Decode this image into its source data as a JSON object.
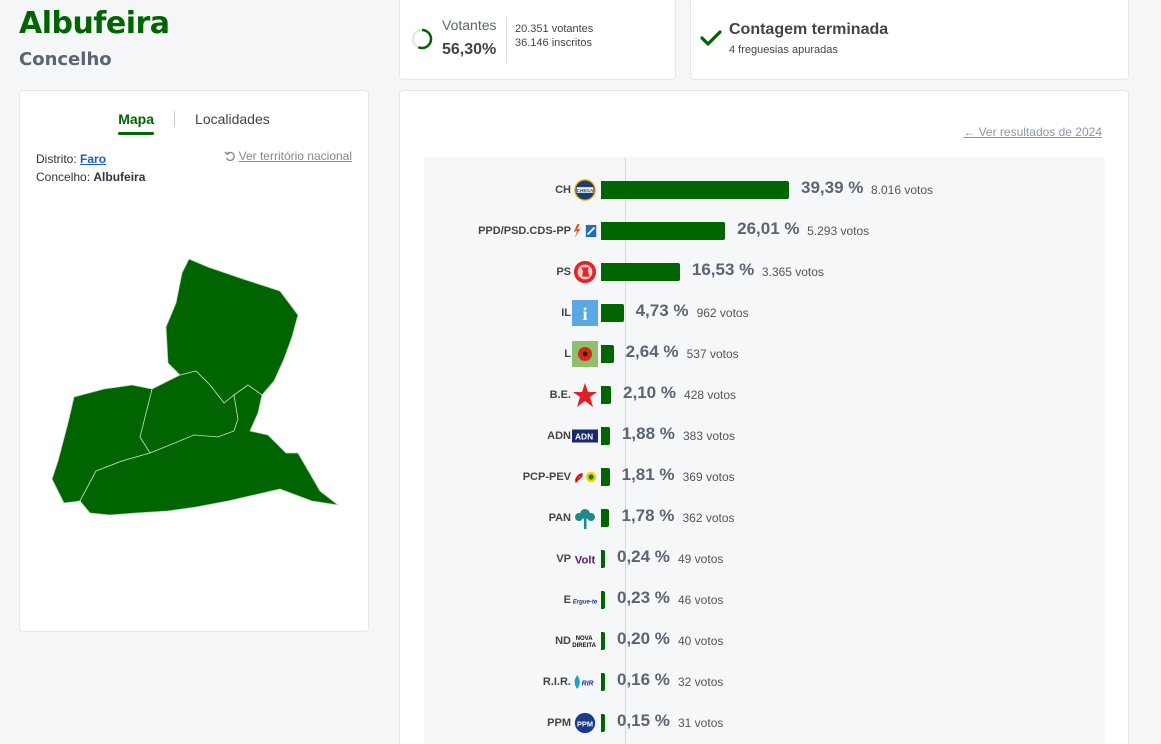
{
  "header": {
    "title": "Albufeira",
    "subtitle": "Concelho"
  },
  "map_panel": {
    "tabs": [
      "Mapa",
      "Localidades"
    ],
    "district_label": "Distrito:",
    "district_value": "Faro",
    "county_label": "Concelho:",
    "county_value": "Albufeira",
    "national_link": "Ver território nacional",
    "map_color": "#006400"
  },
  "votes": {
    "label": "Votantes",
    "percent": "56,30%",
    "percent_value": 56.3,
    "voters": "20.351 votantes",
    "registered": "36.146 inscritos"
  },
  "count": {
    "title": "Contagem terminada",
    "subtitle": "4 freguesias apuradas"
  },
  "results": {
    "prev_link": "Ver resultados de 2024",
    "bar_color": "#006400",
    "rows": [
      {
        "abbr": "CH",
        "pct": "39,39 %",
        "value": 39.39,
        "votes": "8.016 votos",
        "icon": "chega-logo"
      },
      {
        "abbr": "PPD/PSD.CDS-PP",
        "pct": "26,01 %",
        "value": 26.01,
        "votes": "5.293 votos",
        "icon": "ad-logo"
      },
      {
        "abbr": "PS",
        "pct": "16,53 %",
        "value": 16.53,
        "votes": "3.365 votos",
        "icon": "ps-logo"
      },
      {
        "abbr": "IL",
        "pct": "4,73 %",
        "value": 4.73,
        "votes": "962 votos",
        "icon": "il-logo"
      },
      {
        "abbr": "L",
        "pct": "2,64 %",
        "value": 2.64,
        "votes": "537 votos",
        "icon": "livre-logo"
      },
      {
        "abbr": "B.E.",
        "pct": "2,10 %",
        "value": 2.1,
        "votes": "428 votos",
        "icon": "be-logo"
      },
      {
        "abbr": "ADN",
        "pct": "1,88 %",
        "value": 1.88,
        "votes": "383 votos",
        "icon": "adn-logo"
      },
      {
        "abbr": "PCP-PEV",
        "pct": "1,81 %",
        "value": 1.81,
        "votes": "369 votos",
        "icon": "cdu-logo"
      },
      {
        "abbr": "PAN",
        "pct": "1,78 %",
        "value": 1.78,
        "votes": "362 votos",
        "icon": "pan-logo"
      },
      {
        "abbr": "VP",
        "pct": "0,24 %",
        "value": 0.24,
        "votes": "49 votos",
        "icon": "volt-logo"
      },
      {
        "abbr": "E",
        "pct": "0,23 %",
        "value": 0.23,
        "votes": "46 votos",
        "icon": "ergue-te-logo"
      },
      {
        "abbr": "ND",
        "pct": "0,20 %",
        "value": 0.2,
        "votes": "40 votos",
        "icon": "nova-direita-logo"
      },
      {
        "abbr": "R.I.R.",
        "pct": "0,16 %",
        "value": 0.16,
        "votes": "32 votos",
        "icon": "rir-logo"
      },
      {
        "abbr": "PPM",
        "pct": "0,15 %",
        "value": 0.15,
        "votes": "31 votos",
        "icon": "ppm-logo"
      }
    ]
  },
  "logo_text": {
    "chega": "CHEGA",
    "il": "i",
    "adn": "ADN",
    "volt": "Volt",
    "ergue_te": "Ergue-te",
    "nova_direita_line1": "NOVA",
    "nova_direita_line2": "DIREITA",
    "rir": "RIR",
    "ppm": "PPM"
  }
}
